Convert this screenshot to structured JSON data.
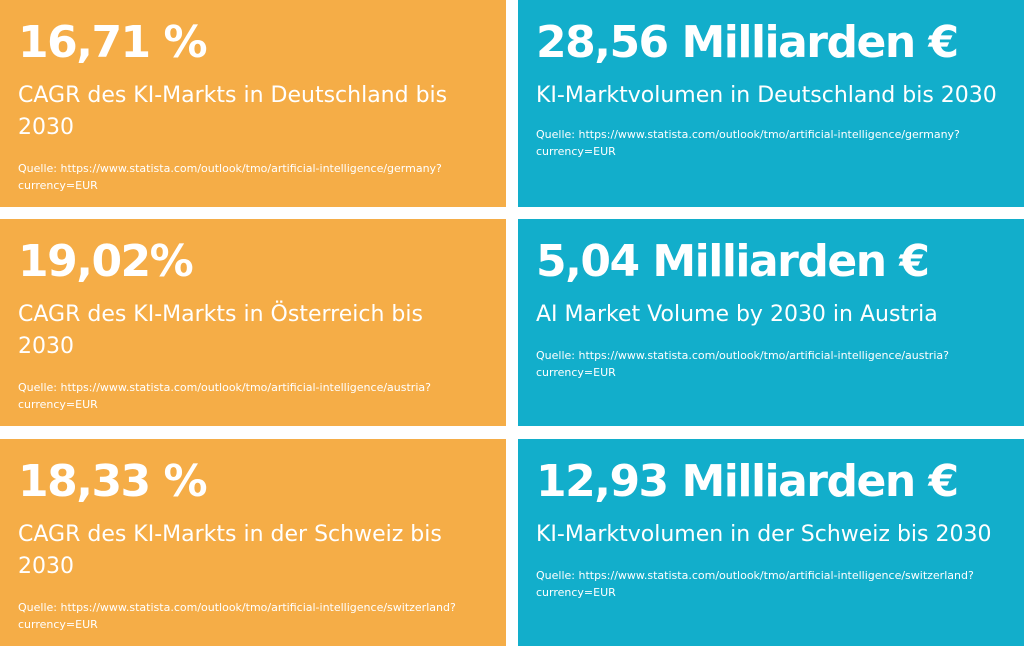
{
  "colors": {
    "orange": "#f5ad47",
    "teal": "#12aecb",
    "text": "#ffffff"
  },
  "cards": [
    {
      "value": "16,71 %",
      "label": "CAGR des KI-Markts in Deutschland bis 2030",
      "source": "Quelle: https://www.statista.com/outlook/tmo/artificial-intelligence/germany?currency=EUR"
    },
    {
      "value": "28,56 Milliarden €",
      "label": "KI-Marktvolumen in Deutschland bis 2030",
      "source": "Quelle: https://www.statista.com/outlook/tmo/artificial-intelligence/germany?currency=EUR"
    },
    {
      "value": "19,02%",
      "label": "CAGR des KI-Markts in Österreich bis 2030",
      "source": "Quelle: https://www.statista.com/outlook/tmo/artificial-intelligence/austria?currency=EUR"
    },
    {
      "value": "5,04 Milliarden €",
      "label": "AI Market Volume by 2030 in Austria",
      "source": "Quelle: https://www.statista.com/outlook/tmo/artificial-intelligence/austria?currency=EUR"
    },
    {
      "value": "18,33 %",
      "label": "CAGR des KI-Markts in der Schweiz bis 2030",
      "source": "Quelle: https://www.statista.com/outlook/tmo/artificial-intelligence/switzerland?currency=EUR"
    },
    {
      "value": "12,93 Milliarden €",
      "label": "KI-Marktvolumen in der Schweiz bis 2030",
      "source": "Quelle: https://www.statista.com/outlook/tmo/artificial-intelligence/switzerland?currency=EUR"
    }
  ]
}
